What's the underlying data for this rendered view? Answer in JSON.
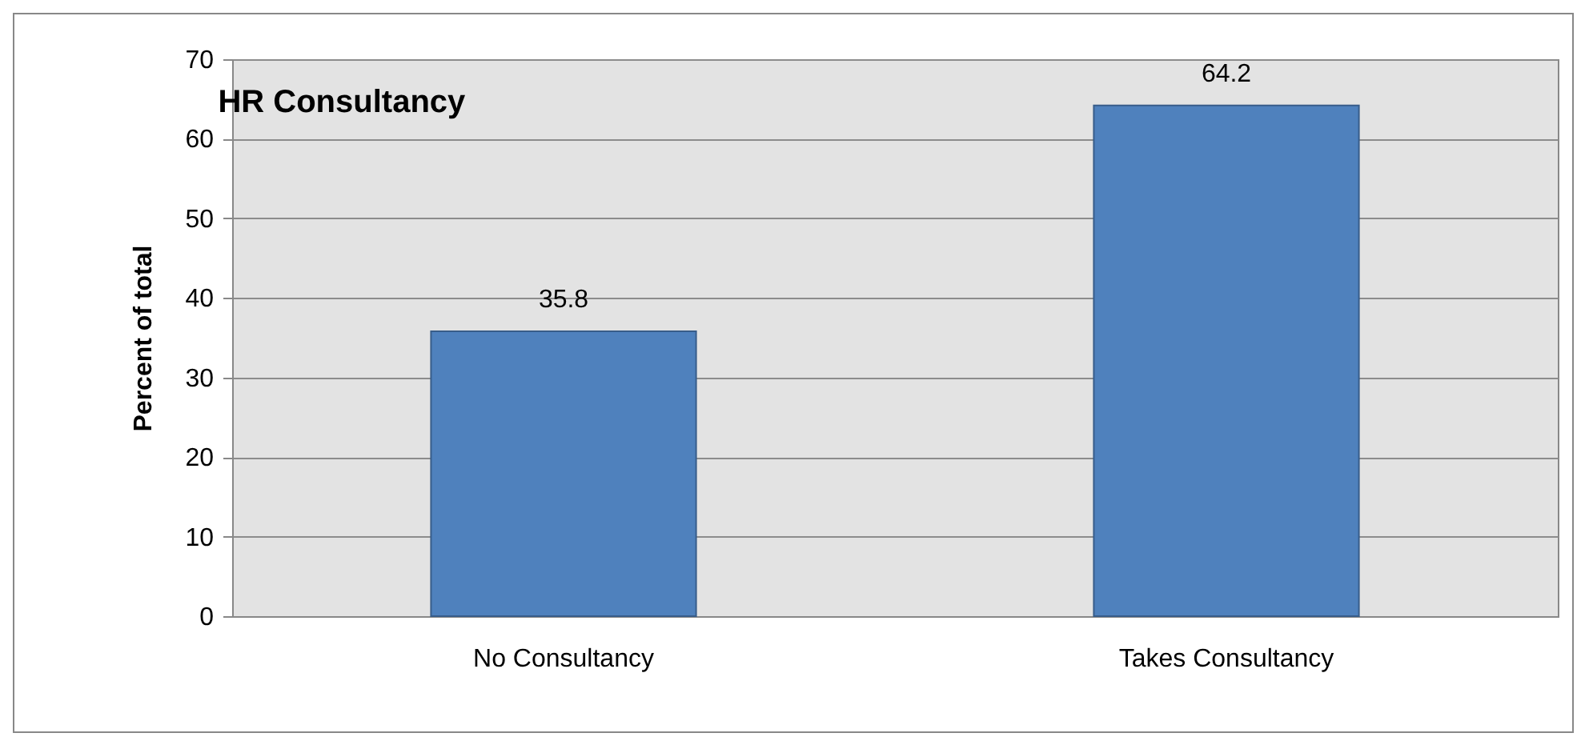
{
  "chart_data": {
    "type": "bar",
    "title": "HR Consultancy",
    "ylabel": "Percent  of total",
    "categories": [
      "No Consultancy",
      "Takes Consultancy"
    ],
    "values": [
      35.8,
      64.2
    ],
    "color": "#4f81bd",
    "ylim": [
      0,
      70
    ],
    "yticks": [
      0,
      10,
      20,
      30,
      40,
      50,
      60,
      70
    ],
    "grid": "y",
    "data_labels": true
  }
}
